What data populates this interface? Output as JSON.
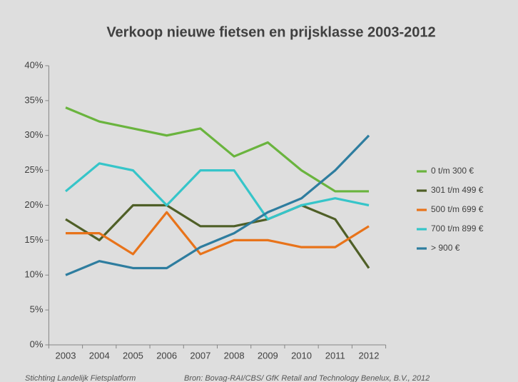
{
  "chart_data": {
    "type": "line",
    "title": "Verkoop nieuwe fietsen en prijsklasse 2003-2012",
    "categories": [
      "2003",
      "2004",
      "2005",
      "2006",
      "2007",
      "2008",
      "2009",
      "2010",
      "2011",
      "2012"
    ],
    "series": [
      {
        "name": "0 t/m 300 €",
        "color": "#6ab43e",
        "values": [
          34,
          32,
          31,
          30,
          31,
          27,
          29,
          25,
          22,
          22
        ]
      },
      {
        "name": "301 t/m 499 €",
        "color": "#4f5f27",
        "values": [
          18,
          15,
          20,
          20,
          17,
          17,
          18,
          20,
          18,
          11
        ]
      },
      {
        "name": "500 t/m 699 €",
        "color": "#e8731a",
        "values": [
          16,
          16,
          13,
          19,
          13,
          15,
          15,
          14,
          14,
          17
        ]
      },
      {
        "name": "700 t/m 899 €",
        "color": "#36c5c9",
        "values": [
          22,
          26,
          25,
          20,
          25,
          25,
          18,
          20,
          21,
          20
        ]
      },
      {
        "name": "> 900 €",
        "color": "#2e7d9f",
        "values": [
          10,
          12,
          11,
          11,
          14,
          16,
          19,
          21,
          25,
          30
        ]
      }
    ],
    "ylim": [
      0,
      40
    ],
    "yticks": [
      {
        "value": 0,
        "label": "0%"
      },
      {
        "value": 5,
        "label": "5%"
      },
      {
        "value": 10,
        "label": "10%"
      },
      {
        "value": 15,
        "label": "15%"
      },
      {
        "value": 20,
        "label": "20%"
      },
      {
        "value": 25,
        "label": "25%"
      },
      {
        "value": 30,
        "label": "30%"
      },
      {
        "value": 35,
        "label": "35%"
      },
      {
        "value": 40,
        "label": "40%"
      }
    ],
    "grid": false,
    "legend": "right",
    "footer": [
      "Stichting Landelijk Fietsplatform",
      "Bron: Bovag-RAI/CBS/ GfK Retail and Technology Benelux, B.V., 2012"
    ]
  }
}
